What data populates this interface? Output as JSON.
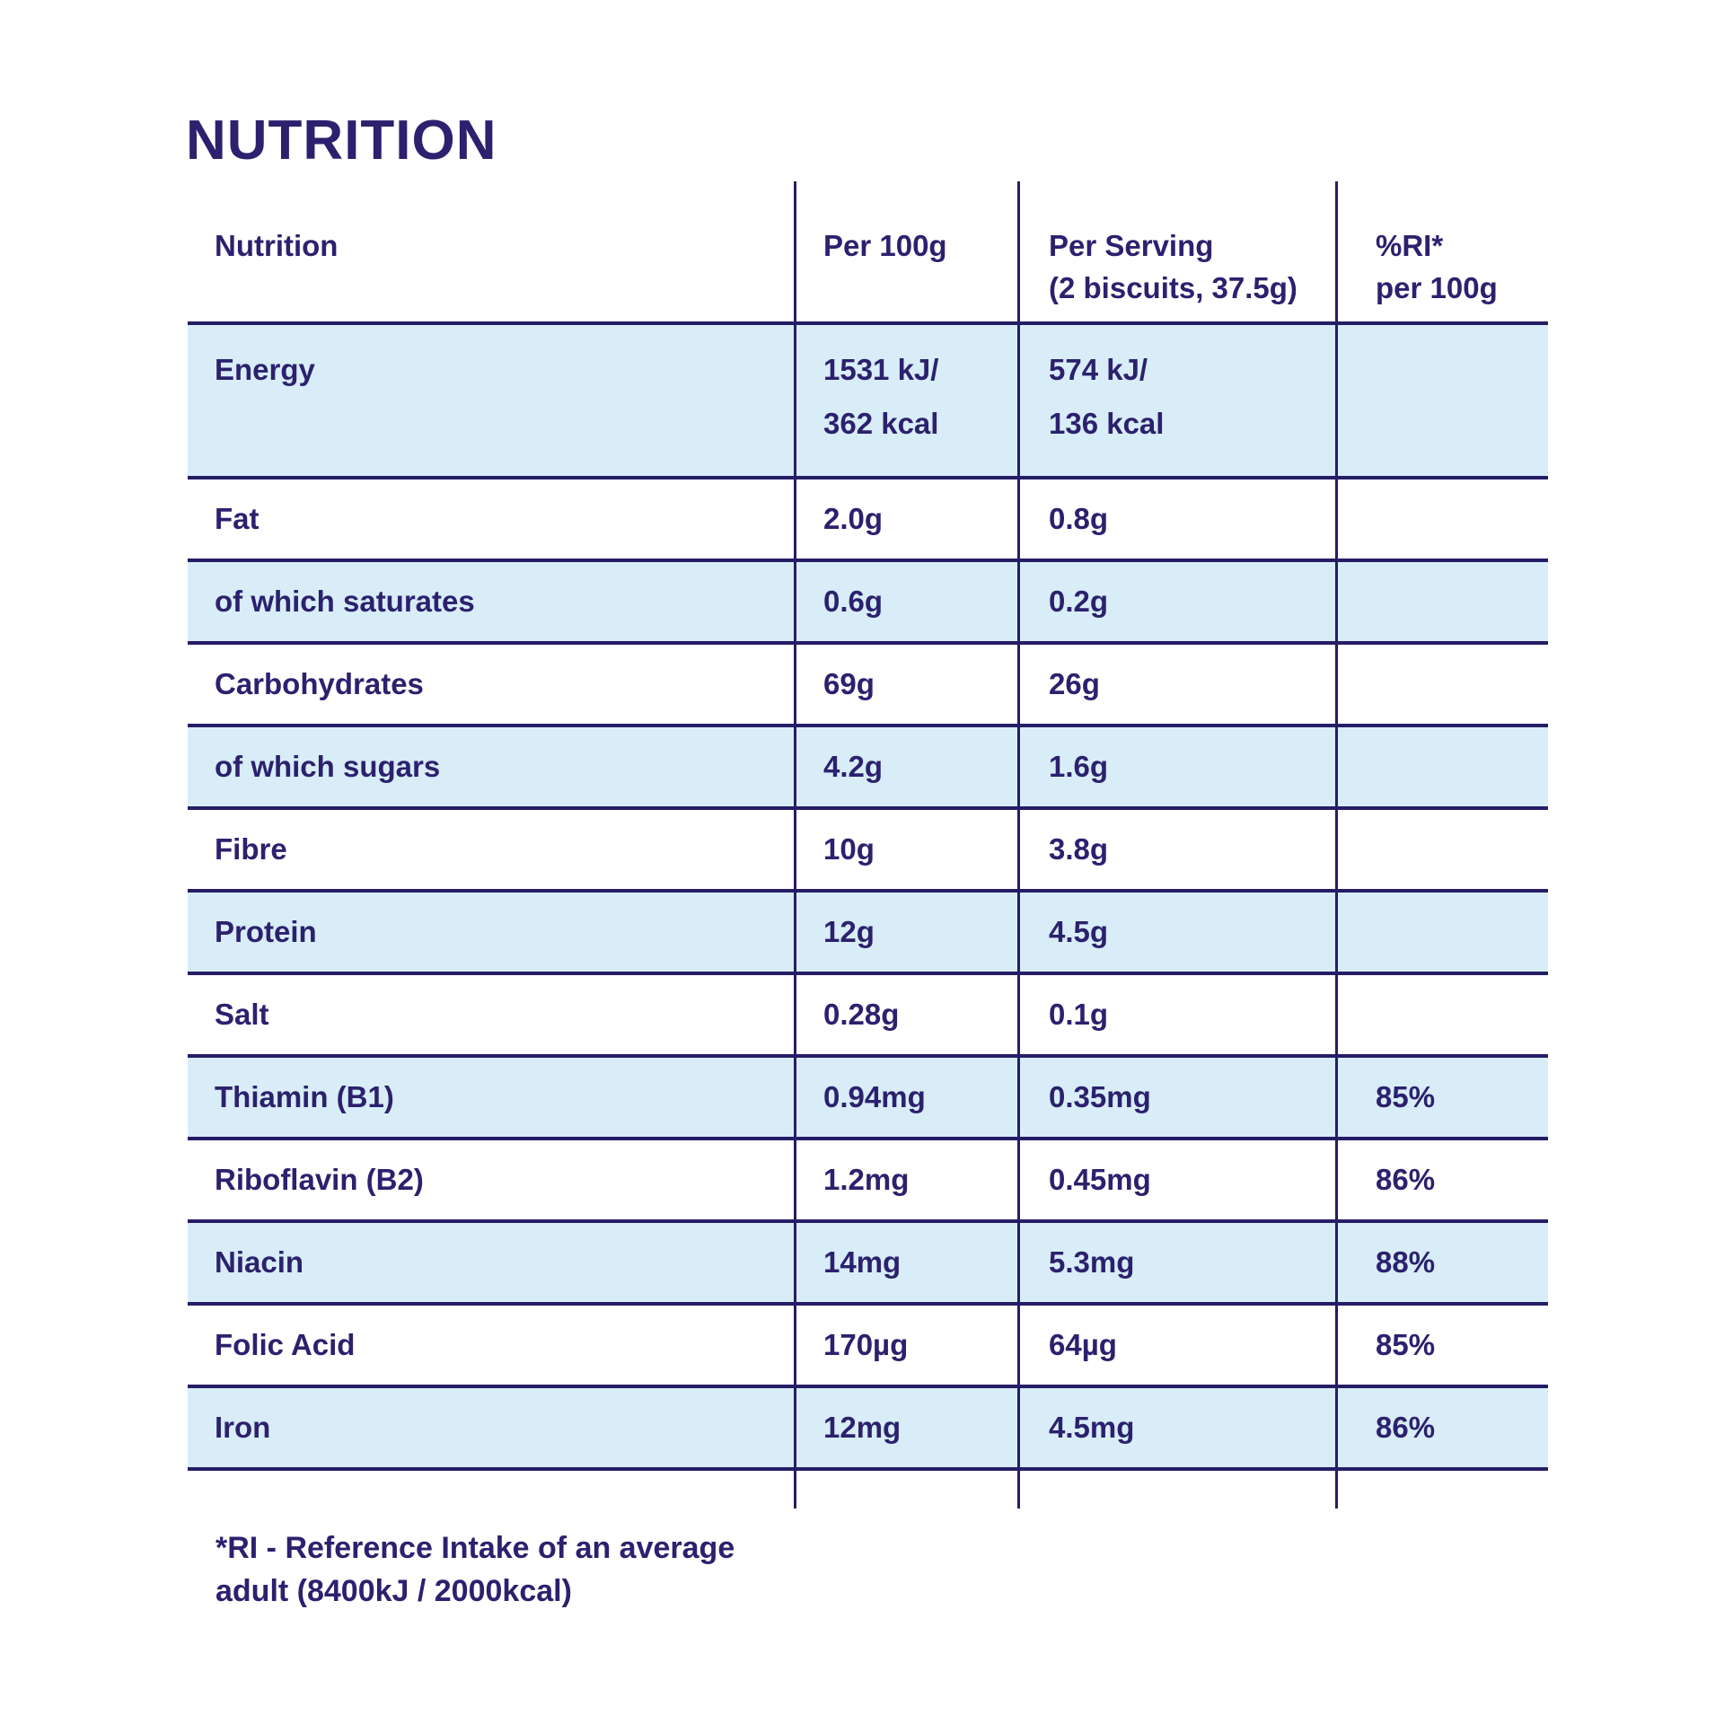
{
  "theme": {
    "ink": "#2b216e",
    "line": "#251d66",
    "rowalt": "#d8edf7",
    "bg": "#ffffff"
  },
  "page": {
    "title": "NUTRITION"
  },
  "table": {
    "header": {
      "nutrition": "Nutrition",
      "per_100g": "Per 100g",
      "per_serving_line1": "Per Serving",
      "per_serving_line2": "(2 biscuits, 37.5g)",
      "ri_line1": "%RI*",
      "ri_line2": "per 100g"
    },
    "energy": {
      "name": "Energy",
      "per_100g_line1": "1531 kJ/",
      "per_100g_line2": "362 kcal",
      "per_serving_line1": "574 kJ/",
      "per_serving_line2": "136 kcal",
      "ri": ""
    },
    "rows": [
      {
        "name": "Fat",
        "per_100g": "2.0g",
        "per_serving": "0.8g",
        "ri": ""
      },
      {
        "name": "of which saturates",
        "per_100g": "0.6g",
        "per_serving": "0.2g",
        "ri": ""
      },
      {
        "name": "Carbohydrates",
        "per_100g": "69g",
        "per_serving": "26g",
        "ri": ""
      },
      {
        "name": "of which sugars",
        "per_100g": "4.2g",
        "per_serving": "1.6g",
        "ri": ""
      },
      {
        "name": "Fibre",
        "per_100g": "10g",
        "per_serving": "3.8g",
        "ri": ""
      },
      {
        "name": "Protein",
        "per_100g": "12g",
        "per_serving": "4.5g",
        "ri": ""
      },
      {
        "name": "Salt",
        "per_100g": "0.28g",
        "per_serving": "0.1g",
        "ri": ""
      },
      {
        "name": "Thiamin (B1)",
        "per_100g": "0.94mg",
        "per_serving": "0.35mg",
        "ri": "85%"
      },
      {
        "name": "Riboflavin (B2)",
        "per_100g": "1.2mg",
        "per_serving": "0.45mg",
        "ri": "86%"
      },
      {
        "name": "Niacin",
        "per_100g": "14mg",
        "per_serving": "5.3mg",
        "ri": "88%"
      },
      {
        "name": "Folic Acid",
        "per_100g": "170µg",
        "per_serving": "64µg",
        "ri": "85%"
      },
      {
        "name": "Iron",
        "per_100g": "12mg",
        "per_serving": "4.5mg",
        "ri": "86%"
      }
    ],
    "footnote_line1": "*RI - Reference Intake of an average",
    "footnote_line2": "adult (8400kJ / 2000kcal)"
  }
}
